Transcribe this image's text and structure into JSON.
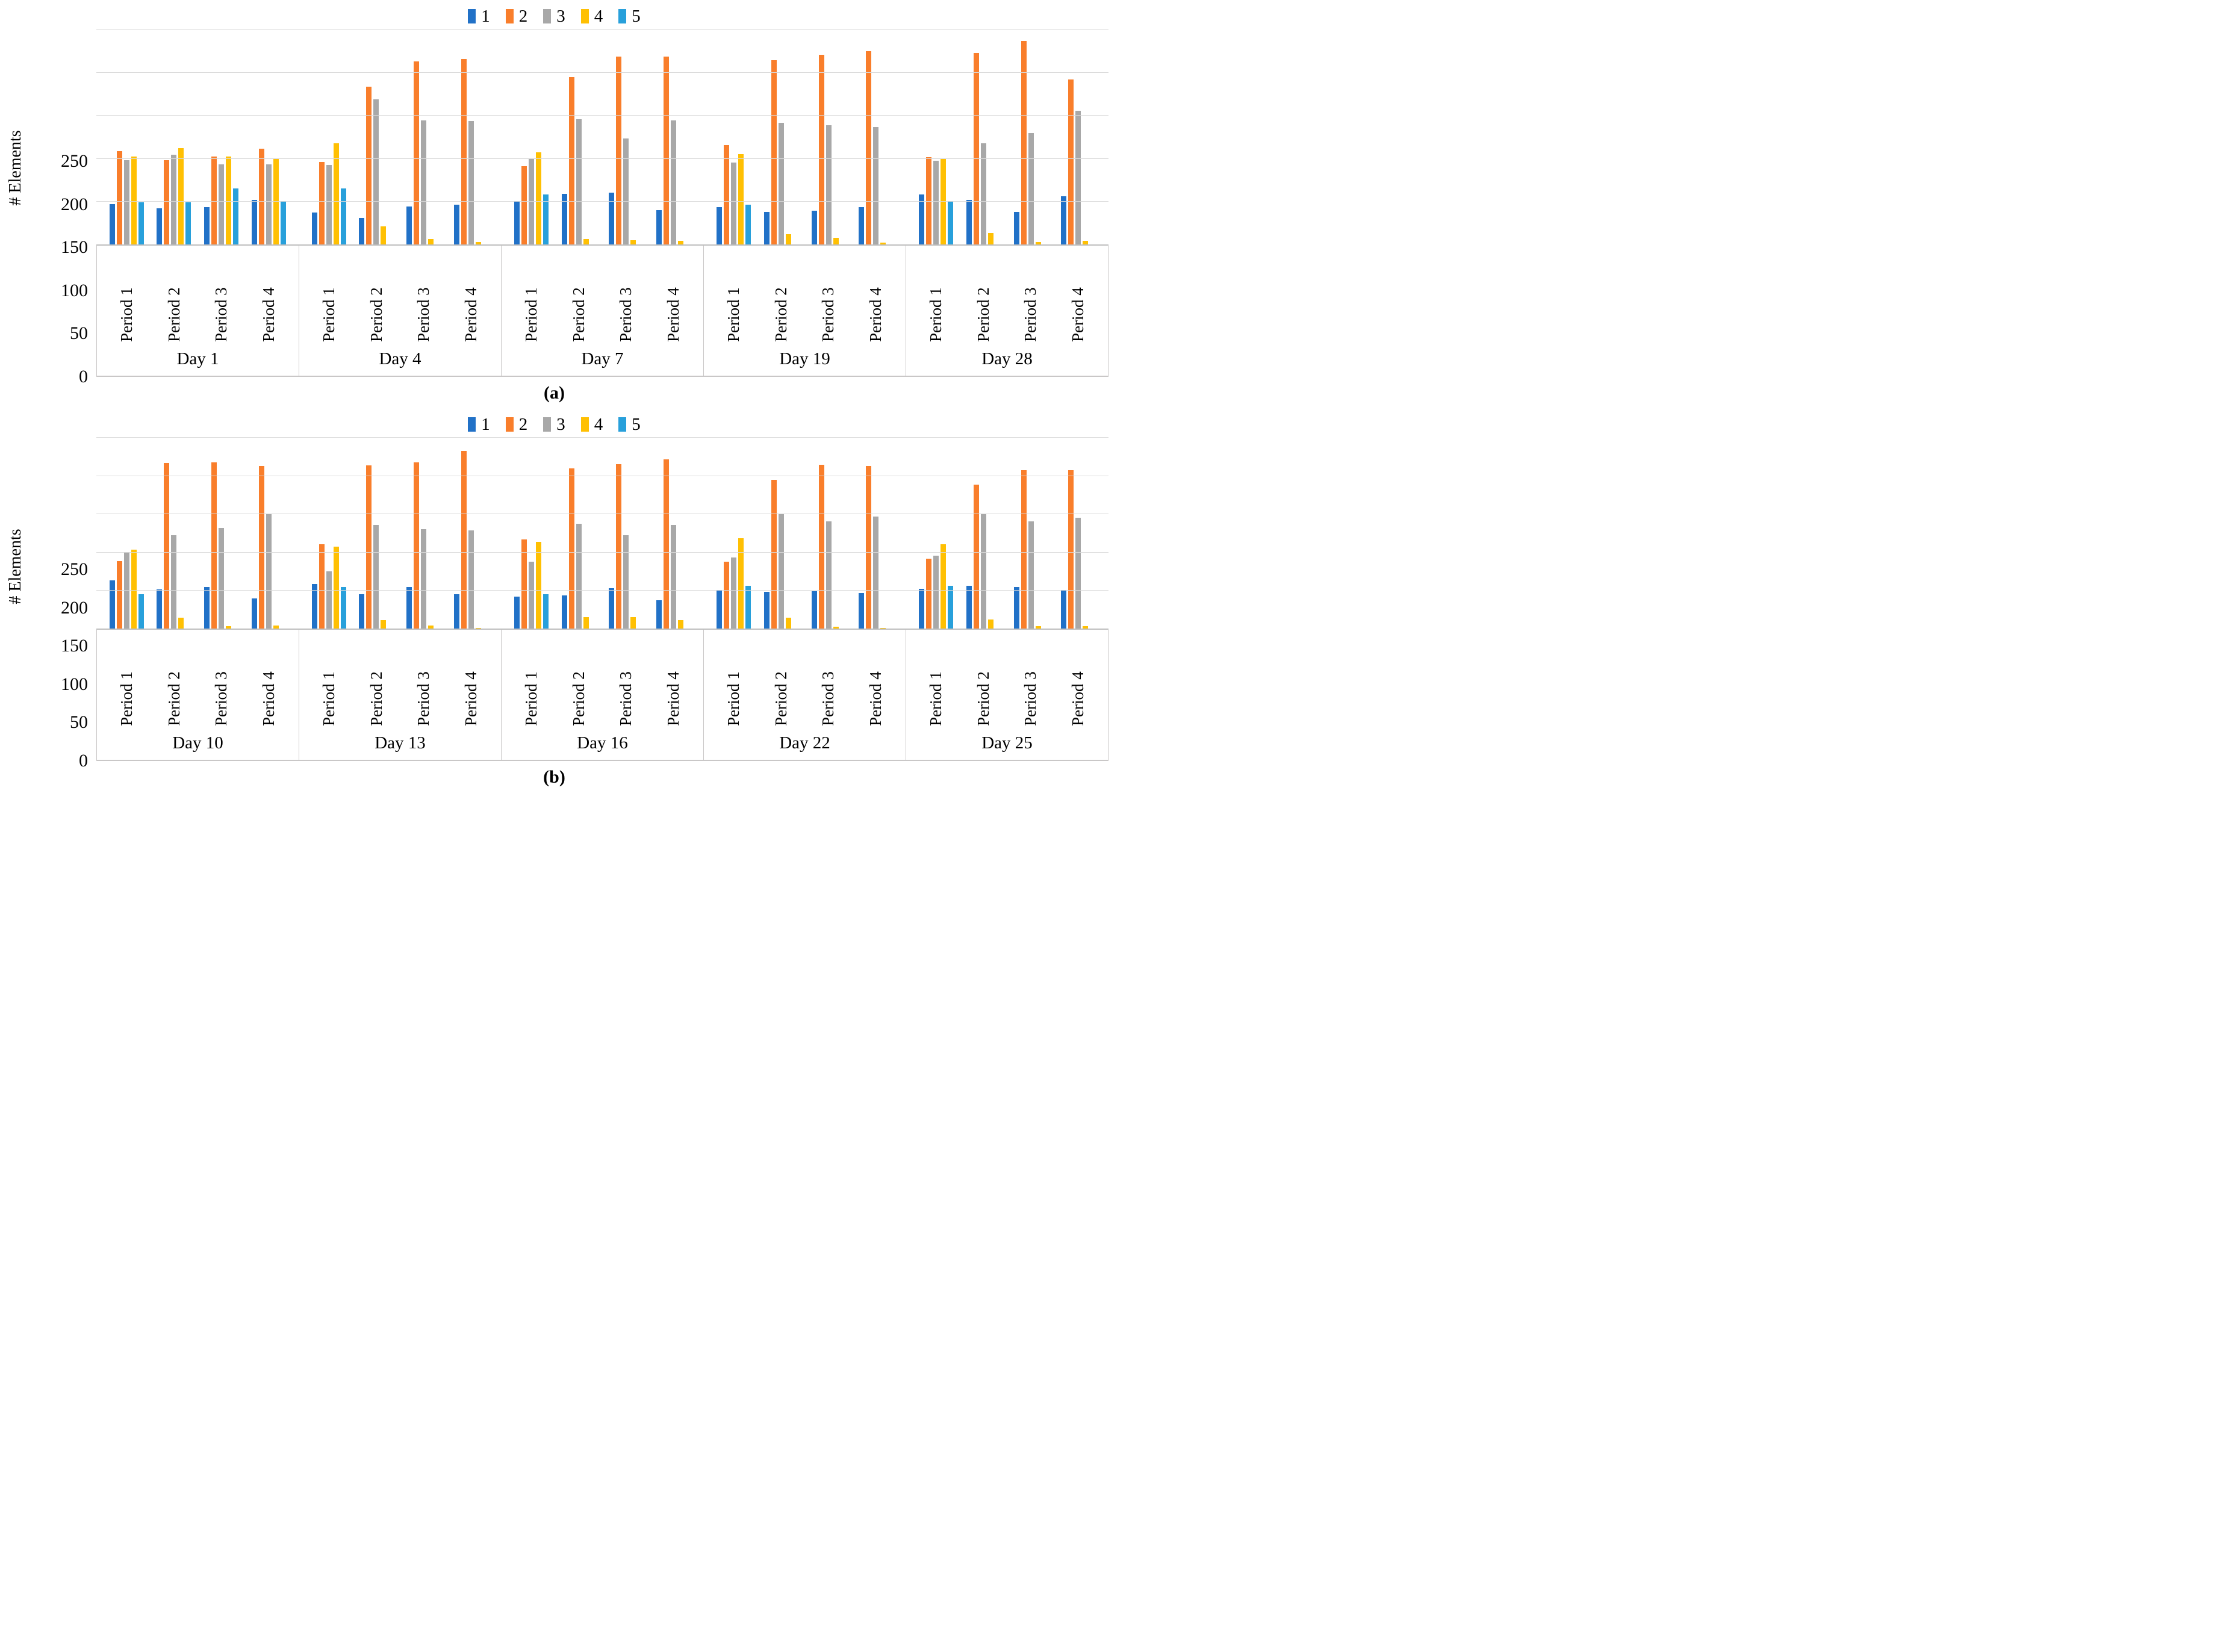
{
  "figure_caption_a": "(a)",
  "figure_caption_b": "(b)",
  "colors": {
    "series1_blue": "#2171C7",
    "series2_orange": "#F97E2B",
    "series3_gray": "#A8A8A8",
    "series4_yellow": "#FFC003",
    "series5_lightblue": "#28A0DB",
    "gridline": "#D9D9D9",
    "axis_line": "#BFBFBF"
  },
  "chart_data": [
    {
      "id": "a",
      "type": "bar",
      "title": "",
      "xlabel": "",
      "ylabel": "# Elements",
      "ylim": [
        0,
        250
      ],
      "yticks": [
        0,
        50,
        100,
        150,
        200,
        250
      ],
      "grid": true,
      "legend_position": "top",
      "legend": [
        "1",
        "2",
        "3",
        "4",
        "5"
      ],
      "series_colors": [
        "#2171C7",
        "#F97E2B",
        "#A8A8A8",
        "#FFC003",
        "#28A0DB"
      ],
      "subgroup_labels": [
        "Period 1",
        "Period 2",
        "Period 3",
        "Period 4"
      ],
      "caption": "(a)",
      "days": [
        {
          "label": "Day 1",
          "periods": [
            {
              "label": "Period 1",
              "values": [
                47,
                108,
                98,
                102,
                49
              ]
            },
            {
              "label": "Period 2",
              "values": [
                42,
                98,
                104,
                112,
                49
              ]
            },
            {
              "label": "Period 3",
              "values": [
                43,
                102,
                93,
                102,
                65
              ]
            },
            {
              "label": "Period 4",
              "values": [
                52,
                111,
                93,
                100,
                50
              ]
            }
          ]
        },
        {
          "label": "Day 4",
          "periods": [
            {
              "label": "Period 1",
              "values": [
                37,
                96,
                92,
                117,
                65
              ]
            },
            {
              "label": "Period 2",
              "values": [
                31,
                183,
                168,
                21,
                0
              ]
            },
            {
              "label": "Period 3",
              "values": [
                44,
                212,
                144,
                6,
                0
              ]
            },
            {
              "label": "Period 4",
              "values": [
                46,
                215,
                143,
                3,
                0
              ]
            }
          ]
        },
        {
          "label": "Day 7",
          "periods": [
            {
              "label": "Period 1",
              "values": [
                50,
                91,
                100,
                107,
                58
              ]
            },
            {
              "label": "Period 2",
              "values": [
                59,
                194,
                145,
                6,
                0
              ]
            },
            {
              "label": "Period 3",
              "values": [
                60,
                218,
                123,
                5,
                0
              ]
            },
            {
              "label": "Period 4",
              "values": [
                40,
                218,
                144,
                4,
                0
              ]
            }
          ]
        },
        {
          "label": "Day 19",
          "periods": [
            {
              "label": "Period 1",
              "values": [
                43,
                115,
                95,
                105,
                46
              ]
            },
            {
              "label": "Period 2",
              "values": [
                38,
                214,
                141,
                12,
                0
              ]
            },
            {
              "label": "Period 3",
              "values": [
                39,
                220,
                138,
                8,
                0
              ]
            },
            {
              "label": "Period 4",
              "values": [
                43,
                224,
                136,
                2,
                0
              ]
            }
          ]
        },
        {
          "label": "Day 28",
          "periods": [
            {
              "label": "Period 1",
              "values": [
                58,
                101,
                97,
                99,
                50
              ]
            },
            {
              "label": "Period 2",
              "values": [
                52,
                222,
                117,
                13,
                0
              ]
            },
            {
              "label": "Period 3",
              "values": [
                38,
                236,
                129,
                3,
                0
              ]
            },
            {
              "label": "Period 4",
              "values": [
                56,
                191,
                155,
                4,
                0
              ]
            }
          ]
        }
      ]
    },
    {
      "id": "b",
      "type": "bar",
      "title": "",
      "xlabel": "",
      "ylabel": "# Elements",
      "ylim": [
        0,
        250
      ],
      "yticks": [
        0,
        50,
        100,
        150,
        200,
        250
      ],
      "grid": true,
      "legend_position": "top",
      "legend": [
        "1",
        "2",
        "3",
        "4",
        "5"
      ],
      "series_colors": [
        "#2171C7",
        "#F97E2B",
        "#A8A8A8",
        "#FFC003",
        "#28A0DB"
      ],
      "subgroup_labels": [
        "Period 1",
        "Period 2",
        "Period 3",
        "Period 4"
      ],
      "caption": "(b)",
      "days": [
        {
          "label": "Day 10",
          "periods": [
            {
              "label": "Period 1",
              "values": [
                63,
                88,
                100,
                103,
                45
              ]
            },
            {
              "label": "Period 2",
              "values": [
                51,
                216,
                122,
                14,
                0
              ]
            },
            {
              "label": "Period 3",
              "values": [
                54,
                217,
                131,
                3,
                0
              ]
            },
            {
              "label": "Period 4",
              "values": [
                39,
                212,
                149,
                4,
                0
              ]
            }
          ]
        },
        {
          "label": "Day 13",
          "periods": [
            {
              "label": "Period 1",
              "values": [
                58,
                110,
                75,
                107,
                54
              ]
            },
            {
              "label": "Period 2",
              "values": [
                45,
                213,
                135,
                11,
                0
              ]
            },
            {
              "label": "Period 3",
              "values": [
                54,
                217,
                130,
                4,
                0
              ]
            },
            {
              "label": "Period 4",
              "values": [
                45,
                232,
                128,
                1,
                0
              ]
            }
          ]
        },
        {
          "label": "Day 16",
          "periods": [
            {
              "label": "Period 1",
              "values": [
                42,
                116,
                87,
                113,
                45
              ]
            },
            {
              "label": "Period 2",
              "values": [
                43,
                209,
                137,
                15,
                0
              ]
            },
            {
              "label": "Period 3",
              "values": [
                53,
                215,
                122,
                15,
                0
              ]
            },
            {
              "label": "Period 4",
              "values": [
                37,
                221,
                135,
                11,
                0
              ]
            }
          ]
        },
        {
          "label": "Day 22",
          "periods": [
            {
              "label": "Period 1",
              "values": [
                50,
                87,
                93,
                118,
                56
              ]
            },
            {
              "label": "Period 2",
              "values": [
                48,
                194,
                149,
                14,
                0
              ]
            },
            {
              "label": "Period 3",
              "values": [
                49,
                214,
                140,
                2,
                0
              ]
            },
            {
              "label": "Period 4",
              "values": [
                46,
                212,
                146,
                1,
                0
              ]
            }
          ]
        },
        {
          "label": "Day 25",
          "periods": [
            {
              "label": "Period 1",
              "values": [
                52,
                91,
                95,
                110,
                56
              ]
            },
            {
              "label": "Period 2",
              "values": [
                56,
                188,
                150,
                12,
                0
              ]
            },
            {
              "label": "Period 3",
              "values": [
                54,
                207,
                140,
                3,
                0
              ]
            },
            {
              "label": "Period 4",
              "values": [
                50,
                207,
                145,
                3,
                0
              ]
            }
          ]
        }
      ]
    }
  ]
}
